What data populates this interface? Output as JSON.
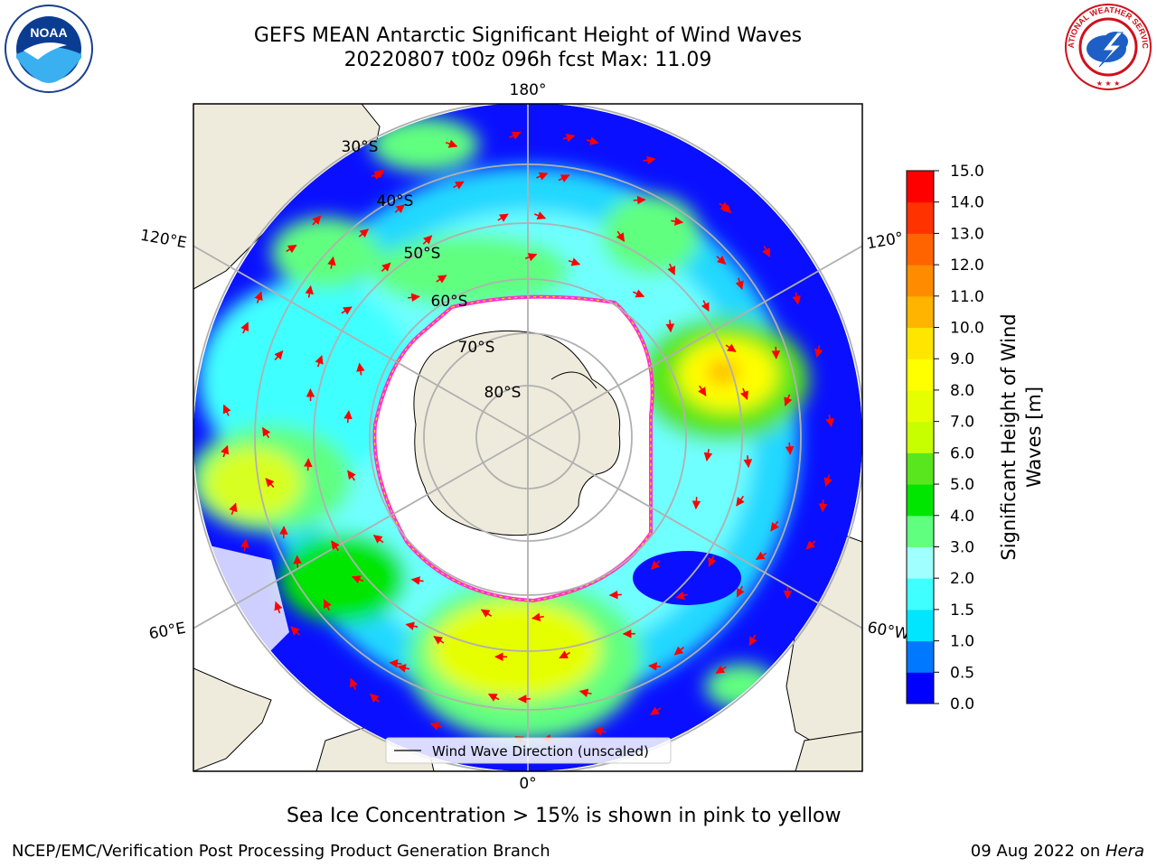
{
  "title": {
    "line1": "GEFS MEAN Antarctic Significant Height of Wind Waves",
    "line2": "20220807 t00z 096h fcst   Max: 11.09"
  },
  "logos": {
    "left": {
      "icon": "noaa-logo",
      "text": "NOAA"
    },
    "right": {
      "icon": "nws-logo",
      "text": "NATIONAL WEATHER SERVICE"
    }
  },
  "map": {
    "projection": "south-polar-stereographic",
    "lon_labels": {
      "top": "180°",
      "bottom": "0°",
      "left_upper": "120°E",
      "left_lower": "60°E",
      "right_upper": "120°",
      "right_lower": "60°W"
    },
    "lat_labels": [
      "30°S",
      "40°S",
      "50°S",
      "60°S",
      "70°S",
      "80°S"
    ],
    "legend_label": "Wind Wave Direction (unscaled)",
    "arrow_color": "#ff0000",
    "land_color": "#efebdc",
    "ice_edge_colors": [
      "#ff33cc",
      "#ffd700"
    ]
  },
  "colorbar": {
    "label": "Significant Height of Wind Waves [m]",
    "label_line1": "Significant Height of Wind",
    "label_line2": "Waves [m]",
    "ticks": [
      "0.0",
      "0.5",
      "1.0",
      "1.5",
      "2.0",
      "3.0",
      "4.0",
      "5.0",
      "6.0",
      "7.0",
      "8.0",
      "9.0",
      "10.0",
      "11.0",
      "12.0",
      "13.0",
      "14.0",
      "15.0"
    ],
    "colors": [
      "#0000ff",
      "#0078ff",
      "#00e6ff",
      "#40ffff",
      "#a0ffff",
      "#60ff80",
      "#00e600",
      "#5ae61e",
      "#c8ff00",
      "#e6ff00",
      "#ffff00",
      "#ffe600",
      "#ffb400",
      "#ff8c00",
      "#ff6400",
      "#ff3200",
      "#ff0000"
    ]
  },
  "footnote": "Sea Ice Concentration > 15% is shown in pink to yellow",
  "footer": {
    "left": "NCEP/EMC/Verification Post Processing Product Generation Branch",
    "right_date": "09 Aug 2022 on ",
    "right_host": "Hera"
  }
}
